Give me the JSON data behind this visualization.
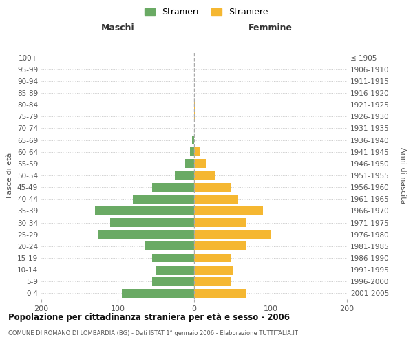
{
  "age_groups": [
    "0-4",
    "5-9",
    "10-14",
    "15-19",
    "20-24",
    "25-29",
    "30-34",
    "35-39",
    "40-44",
    "45-49",
    "50-54",
    "55-59",
    "60-64",
    "65-69",
    "70-74",
    "75-79",
    "80-84",
    "85-89",
    "90-94",
    "95-99",
    "100+"
  ],
  "birth_years": [
    "2001-2005",
    "1996-2000",
    "1991-1995",
    "1986-1990",
    "1981-1985",
    "1976-1980",
    "1971-1975",
    "1966-1970",
    "1961-1965",
    "1956-1960",
    "1951-1955",
    "1946-1950",
    "1941-1945",
    "1936-1940",
    "1931-1935",
    "1926-1930",
    "1921-1925",
    "1916-1920",
    "1911-1915",
    "1906-1910",
    "≤ 1905"
  ],
  "maschi": [
    95,
    55,
    50,
    55,
    65,
    125,
    110,
    130,
    80,
    55,
    25,
    12,
    5,
    3,
    0,
    0,
    0,
    0,
    0,
    0,
    0
  ],
  "femmine": [
    68,
    48,
    50,
    48,
    68,
    100,
    68,
    90,
    58,
    48,
    28,
    15,
    8,
    0,
    0,
    2,
    1,
    0,
    0,
    0,
    0
  ],
  "male_color": "#6aaa64",
  "female_color": "#f5b731",
  "grid_color": "#cccccc",
  "center_line_color": "#aaaaaa",
  "title": "Popolazione per cittadinanza straniera per età e sesso - 2006",
  "subtitle": "COMUNE DI ROMANO DI LOMBARDIA (BG) - Dati ISTAT 1° gennaio 2006 - Elaborazione TUTTITALIA.IT",
  "legend_maschi": "Stranieri",
  "legend_femmine": "Straniere",
  "xlabel_left": "Maschi",
  "xlabel_right": "Femmine",
  "ylabel_left": "Fasce di età",
  "ylabel_right": "Anni di nascita",
  "xlim": 200,
  "xticks": [
    -200,
    -100,
    0,
    100,
    200
  ],
  "xticklabels": [
    "200",
    "100",
    "0",
    "100",
    "200"
  ],
  "bar_height": 0.75
}
